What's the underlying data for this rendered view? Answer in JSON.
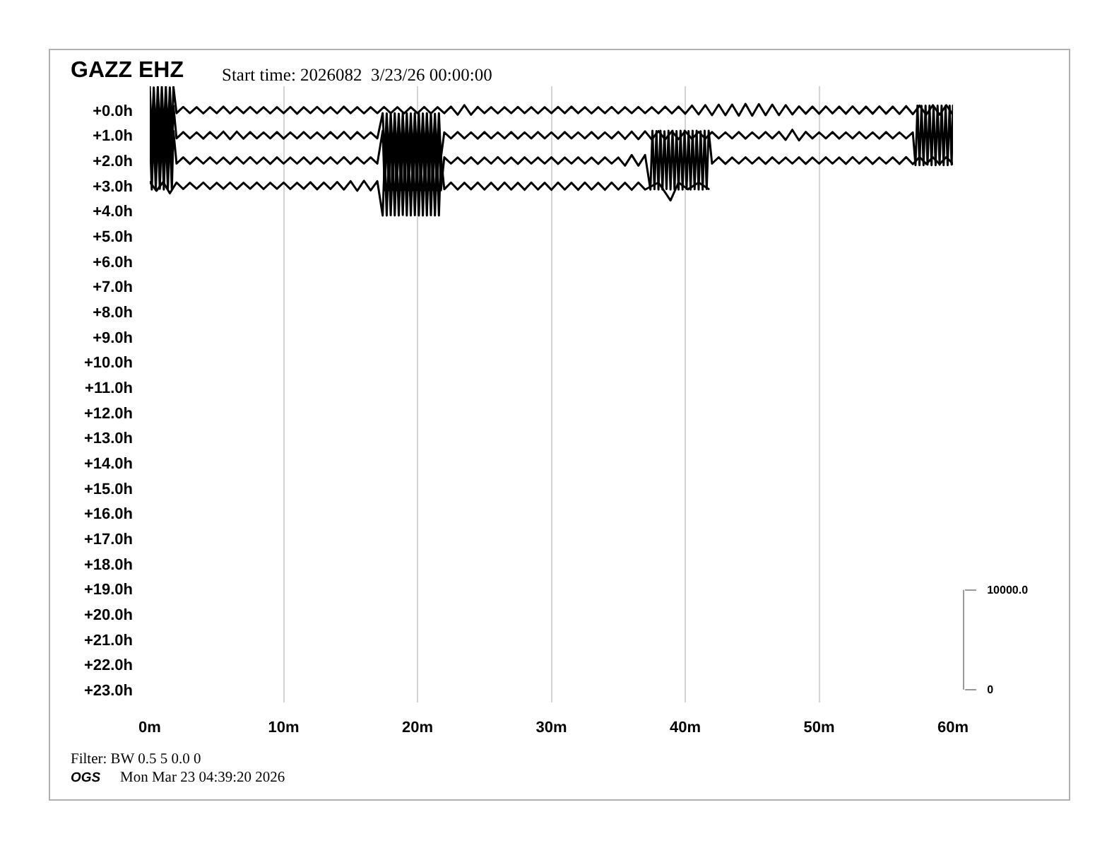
{
  "chart_data": {
    "type": "line",
    "title": "GAZZ EHZ",
    "subtitle": "Start time: 2026082  3/23/26 00:00:00",
    "annotations": [
      "Filter: BW 0.5 5 0.0 0",
      "OGS",
      "Mon Mar 23 04:39:20 2026"
    ],
    "xlim": [
      0,
      60
    ],
    "xticks": [
      {
        "value": 0,
        "label": "0m"
      },
      {
        "value": 10,
        "label": "10m"
      },
      {
        "value": 20,
        "label": "20m"
      },
      {
        "value": 30,
        "label": "30m"
      },
      {
        "value": 40,
        "label": "40m"
      },
      {
        "value": 50,
        "label": "50m"
      },
      {
        "value": 60,
        "label": "60m"
      }
    ],
    "ylim": [
      23.5,
      -0.95
    ],
    "yticks": [
      {
        "value": 0,
        "label": "+0.0h"
      },
      {
        "value": 1,
        "label": "+1.0h"
      },
      {
        "value": 2,
        "label": "+2.0h"
      },
      {
        "value": 3,
        "label": "+3.0h"
      },
      {
        "value": 4,
        "label": "+4.0h"
      },
      {
        "value": 5,
        "label": "+5.0h"
      },
      {
        "value": 6,
        "label": "+6.0h"
      },
      {
        "value": 7,
        "label": "+7.0h"
      },
      {
        "value": 8,
        "label": "+8.0h"
      },
      {
        "value": 9,
        "label": "+9.0h"
      },
      {
        "value": 10,
        "label": "+10.0h"
      },
      {
        "value": 11,
        "label": "+11.0h"
      },
      {
        "value": 12,
        "label": "+12.0h"
      },
      {
        "value": 13,
        "label": "+13.0h"
      },
      {
        "value": 14,
        "label": "+14.0h"
      },
      {
        "value": 15,
        "label": "+15.0h"
      },
      {
        "value": 16,
        "label": "+16.0h"
      },
      {
        "value": 17,
        "label": "+17.0h"
      },
      {
        "value": 18,
        "label": "+18.0h"
      },
      {
        "value": 19,
        "label": "+19.0h"
      },
      {
        "value": 20,
        "label": "+20.0h"
      },
      {
        "value": 21,
        "label": "+21.0h"
      },
      {
        "value": 22,
        "label": "+22.0h"
      },
      {
        "value": 23,
        "label": "+23.0h"
      }
    ],
    "y2lim": [
      -1300,
      60600
    ],
    "y2ticks": [
      {
        "value": 10000,
        "label": "10000.0"
      },
      0
    ],
    "grid": "x",
    "series": [
      {
        "color": "#000000",
        "x": [
          0,
          0.15,
          0.3,
          0.45,
          0.6,
          0.75,
          0.9,
          1.05,
          1.2,
          1.35,
          1.5,
          1.65,
          1.77,
          2,
          2.5,
          3,
          3.5,
          4,
          4.5,
          5,
          5.5,
          6,
          6.5,
          7,
          7.5,
          8,
          8.5,
          9,
          9.5,
          10,
          10.5,
          11,
          11.5,
          12,
          12.5,
          13,
          13.5,
          14,
          14.5,
          15,
          15.5,
          16,
          16.5,
          17,
          17.5,
          18,
          18.5,
          19,
          19.5,
          20,
          20.5,
          21,
          21.5,
          22,
          22.5,
          23,
          23.5,
          24,
          24.5,
          25,
          25.5,
          26,
          26.5,
          27,
          27.5,
          28,
          28.5,
          29,
          29.5,
          30,
          30.5,
          31,
          31.5,
          32,
          32.5,
          33,
          33.5,
          34,
          34.5,
          35,
          35.5,
          36,
          36.5,
          37,
          37.5,
          38,
          38.5,
          39,
          39.5,
          40,
          40.5,
          41,
          41.5,
          42,
          42.5,
          43,
          43.5,
          44,
          44.5,
          45,
          45.5,
          46,
          46.5,
          47,
          47.5,
          48,
          48.5,
          49,
          49.5,
          50,
          50.5,
          51,
          51.5,
          52,
          52.5,
          53,
          53.5,
          54,
          54.5,
          55,
          55.5,
          56,
          56.5,
          57,
          57.5,
          58,
          58.5,
          59,
          59.5,
          60
        ],
        "values": [
          -0.93,
          0.93,
          -0.9,
          0.93,
          -0.93,
          0.9,
          -0.92,
          0.93,
          -0.93,
          0.92,
          -0.9,
          0.93,
          -0.92,
          0.12,
          -0.13,
          0.12,
          -0.12,
          0.13,
          -0.12,
          0.12,
          -0.14,
          0.13,
          -0.12,
          0.12,
          -0.13,
          0.12,
          -0.12,
          0.13,
          -0.12,
          0.12,
          -0.13,
          0.14,
          -0.12,
          0.12,
          -0.13,
          0.12,
          -0.12,
          0.13,
          -0.14,
          0.12,
          -0.12,
          0.13,
          -0.12,
          0.12,
          -0.13,
          0.12,
          -0.12,
          0.13,
          -0.12,
          0.12,
          -0.13,
          0.13,
          -0.12,
          0.12,
          -0.14,
          0.18,
          -0.2,
          0.18,
          -0.13,
          0.12,
          -0.12,
          0.13,
          -0.12,
          0.12,
          -0.13,
          0.12,
          -0.12,
          0.13,
          -0.12,
          0.12,
          -0.13,
          0.12,
          -0.14,
          0.12,
          -0.12,
          0.13,
          -0.12,
          0.12,
          -0.13,
          0.13,
          -0.12,
          0.12,
          -0.13,
          0.12,
          -0.12,
          0.13,
          -0.14,
          0.13,
          -0.14,
          0.14,
          -0.18,
          0.17,
          -0.2,
          0.2,
          -0.22,
          0.2,
          -0.22,
          0.22,
          -0.25,
          0.22,
          -0.24,
          0.2,
          -0.22,
          0.2,
          -0.2,
          0.17,
          -0.15,
          0.14,
          -0.14,
          0.14,
          -0.15,
          0.13,
          -0.14,
          0.14,
          -0.15,
          0.14,
          -0.14,
          0.14,
          -0.15,
          0.14,
          -0.14,
          0.15,
          -0.16,
          0.16,
          -0.18,
          0.18,
          -0.2,
          0.18,
          -0.2,
          0.18
        ]
      },
      {
        "color": "#000000",
        "x": [
          0,
          0.15,
          0.3,
          0.45,
          0.6,
          0.75,
          0.9,
          1.05,
          1.2,
          1.35,
          1.5,
          1.65,
          1.77,
          2,
          2.5,
          3,
          3.5,
          4,
          4.5,
          5,
          5.5,
          6,
          6.5,
          7,
          7.5,
          8,
          8.5,
          9,
          9.5,
          10,
          10.5,
          11,
          11.5,
          12,
          12.5,
          13,
          13.5,
          14,
          14.5,
          15,
          15.5,
          16,
          16.5,
          17,
          17.4,
          17.55,
          17.7,
          17.85,
          18,
          18.15,
          18.3,
          18.45,
          18.6,
          18.75,
          18.9,
          19.05,
          19.2,
          19.35,
          19.5,
          19.65,
          19.8,
          19.95,
          20.1,
          20.25,
          20.4,
          20.55,
          20.7,
          20.85,
          21,
          21.15,
          21.3,
          21.45,
          21.6,
          21.75,
          22,
          22.5,
          23,
          23.5,
          24,
          24.5,
          25,
          25.5,
          26,
          26.5,
          27,
          27.5,
          28,
          28.5,
          29,
          29.5,
          30,
          30.5,
          31,
          31.5,
          32,
          32.5,
          33,
          33.5,
          34,
          34.5,
          35,
          35.5,
          36,
          36.5,
          37,
          37.5,
          38,
          38.5,
          39,
          39.5,
          40,
          40.5,
          41,
          41.5,
          42,
          42.5,
          43,
          43.5,
          44,
          44.5,
          45,
          45.5,
          46,
          46.5,
          47,
          47.5,
          48,
          48.5,
          49,
          49.5,
          50,
          50.5,
          51,
          51.5,
          52,
          52.5,
          53,
          53.5,
          54,
          54.5,
          55,
          55.5,
          56,
          56.5,
          57,
          57.2,
          57.35,
          57.5,
          57.65,
          57.8,
          57.95,
          58.1,
          58.25,
          58.4,
          58.55,
          58.7,
          58.85,
          59,
          59.15,
          59.3,
          59.45,
          59.6,
          59.75,
          59.9,
          60
        ],
        "values": [
          -0.18,
          2.18,
          -0.15,
          2.18,
          -0.18,
          2.15,
          -0.17,
          2.18,
          -0.18,
          2.17,
          -0.15,
          2.18,
          -0.17,
          1.12,
          0.87,
          1.12,
          0.88,
          1.13,
          0.87,
          1.12,
          0.85,
          1.15,
          0.85,
          1.13,
          0.87,
          1.12,
          0.88,
          1.12,
          0.87,
          1.13,
          0.88,
          1.12,
          0.87,
          1.12,
          0.88,
          1.13,
          0.87,
          1.12,
          0.86,
          1.14,
          0.87,
          1.12,
          0.88,
          1.12,
          0.12,
          1.88,
          0.13,
          1.88,
          0.12,
          1.87,
          0.12,
          1.88,
          0.14,
          1.88,
          0.12,
          1.86,
          0.12,
          1.88,
          0.13,
          1.88,
          0.12,
          1.87,
          0.12,
          1.88,
          0.13,
          1.88,
          0.12,
          1.88,
          0.12,
          1.87,
          0.14,
          1.88,
          0.12,
          1.88,
          0.88,
          1.12,
          0.87,
          1.12,
          0.88,
          1.13,
          0.87,
          1.12,
          0.88,
          1.12,
          0.87,
          1.13,
          0.88,
          1.12,
          0.87,
          1.12,
          0.88,
          1.13,
          0.87,
          1.12,
          0.88,
          1.12,
          0.87,
          1.13,
          0.88,
          1.12,
          0.86,
          1.14,
          0.85,
          1.15,
          0.84,
          1.16,
          0.83,
          1.16,
          0.84,
          1.15,
          0.84,
          1.14,
          0.86,
          1.13,
          0.87,
          1.12,
          0.88,
          1.12,
          0.87,
          1.13,
          0.88,
          1.12,
          0.87,
          1.12,
          0.86,
          1.18,
          0.78,
          1.2,
          0.86,
          1.12,
          0.88,
          1.12,
          0.87,
          1.13,
          0.88,
          1.12,
          0.87,
          1.12,
          0.88,
          1.13,
          0.87,
          1.12,
          0.88,
          1.12,
          0.88,
          2.18,
          -0.18,
          2.18,
          -0.17,
          2.18,
          -0.18,
          2.16,
          -0.18,
          2.18,
          -0.16,
          2.18,
          -0.18,
          2.17,
          -0.18,
          2.18,
          -0.17,
          2.18,
          -0.18,
          2.16,
          -0.18
        ]
      },
      {
        "color": "#000000",
        "x": [
          0,
          0.15,
          0.3,
          0.45,
          0.6,
          0.75,
          0.9,
          1.05,
          1.2,
          1.35,
          1.5,
          1.65,
          1.77,
          2,
          2.5,
          3,
          3.5,
          4,
          4.5,
          5,
          5.5,
          6,
          6.5,
          7,
          7.5,
          8,
          8.5,
          9,
          9.5,
          10,
          10.5,
          11,
          11.5,
          12,
          12.5,
          13,
          13.5,
          14,
          14.5,
          15,
          15.5,
          16,
          16.5,
          17,
          17.4,
          17.55,
          17.7,
          17.85,
          18,
          18.15,
          18.3,
          18.45,
          18.6,
          18.75,
          18.9,
          19.05,
          19.2,
          19.35,
          19.5,
          19.65,
          19.8,
          19.95,
          20.1,
          20.25,
          20.4,
          20.55,
          20.7,
          20.85,
          21,
          21.15,
          21.3,
          21.45,
          21.6,
          21.75,
          22,
          22.5,
          23,
          23.5,
          24,
          24.5,
          25,
          25.5,
          26,
          26.5,
          27,
          27.5,
          28,
          28.5,
          29,
          29.5,
          30,
          30.5,
          31,
          31.5,
          32,
          32.5,
          33,
          33.5,
          34,
          34.5,
          35,
          35.5,
          36,
          36.5,
          37,
          37.4,
          37.55,
          37.7,
          37.85,
          38,
          38.15,
          38.3,
          38.45,
          38.6,
          38.75,
          38.9,
          39.05,
          39.2,
          39.35,
          39.5,
          39.65,
          39.8,
          39.95,
          40.1,
          40.25,
          40.4,
          40.55,
          40.7,
          40.85,
          41,
          41.15,
          41.3,
          41.45,
          41.6,
          41.75,
          42,
          42.5,
          43,
          43.5,
          44,
          44.5,
          45,
          45.5,
          46,
          46.5,
          47,
          47.5,
          48,
          48.5,
          49,
          49.5,
          50,
          50.5,
          51,
          51.5,
          52,
          52.5,
          53,
          53.5,
          54,
          54.5,
          55,
          55.5,
          56,
          56.5,
          57,
          57.5,
          58,
          58.5,
          59,
          59.5,
          60
        ],
        "values": [
          0.82,
          3.15,
          0.85,
          3.15,
          0.82,
          3.12,
          0.83,
          3.15,
          0.82,
          3.14,
          0.85,
          3.15,
          0.83,
          2.12,
          1.87,
          2.13,
          1.88,
          2.12,
          1.87,
          2.12,
          1.88,
          2.13,
          1.87,
          2.12,
          1.86,
          2.12,
          1.88,
          2.13,
          1.87,
          2.12,
          1.88,
          2.12,
          1.87,
          2.13,
          1.88,
          2.12,
          1.87,
          2.12,
          1.86,
          2.13,
          1.88,
          2.12,
          1.87,
          2.12,
          0.82,
          3.18,
          0.83,
          3.18,
          0.82,
          3.17,
          0.82,
          3.18,
          0.84,
          3.18,
          0.82,
          3.16,
          0.82,
          3.18,
          0.83,
          3.18,
          0.82,
          3.17,
          0.82,
          3.18,
          0.83,
          3.18,
          0.82,
          3.18,
          0.82,
          3.17,
          0.84,
          3.18,
          0.82,
          3.18,
          1.87,
          2.12,
          1.88,
          2.12,
          1.87,
          2.13,
          1.88,
          2.12,
          1.86,
          2.12,
          1.88,
          2.13,
          1.87,
          2.12,
          1.88,
          2.12,
          1.87,
          2.13,
          1.88,
          2.12,
          1.87,
          2.12,
          1.88,
          2.13,
          1.87,
          2.12,
          1.88,
          2.2,
          1.78,
          2.2,
          1.78,
          3.15,
          0.82,
          3.14,
          0.83,
          3.15,
          0.82,
          3.15,
          0.84,
          3.13,
          0.82,
          3.15,
          0.82,
          3.14,
          0.83,
          3.15,
          0.82,
          3.15,
          0.82,
          3.13,
          0.83,
          3.15,
          0.82,
          3.14,
          0.82,
          3.15,
          0.84,
          3.15,
          0.82,
          3.13,
          0.82,
          2.12,
          1.87,
          2.13,
          1.88,
          2.12,
          1.87,
          2.12,
          1.88,
          2.13,
          1.87,
          2.12,
          1.88,
          2.12,
          1.87,
          2.13,
          1.88,
          2.12,
          1.87,
          2.12,
          1.88,
          2.13,
          1.86,
          2.12,
          1.87,
          2.13,
          1.88,
          2.12,
          1.87,
          2.13,
          1.86,
          2.14,
          1.86,
          2.13,
          1.87,
          2.14,
          1.86,
          2.13
        ]
      },
      {
        "color": "#000000",
        "x": [
          0,
          0.5,
          1,
          1.5,
          2,
          2.5,
          3,
          3.5,
          4,
          4.5,
          5,
          5.5,
          6,
          6.5,
          7,
          7.5,
          8,
          8.5,
          9,
          9.5,
          10,
          10.5,
          11,
          11.5,
          12,
          12.5,
          13,
          13.5,
          14,
          14.5,
          15,
          15.5,
          16,
          16.5,
          17,
          17.4,
          17.55,
          17.7,
          17.85,
          18,
          18.15,
          18.3,
          18.45,
          18.6,
          18.75,
          18.9,
          19.05,
          19.2,
          19.35,
          19.5,
          19.65,
          19.8,
          19.95,
          20.1,
          20.25,
          20.4,
          20.55,
          20.7,
          20.85,
          21,
          21.15,
          21.3,
          21.45,
          21.6,
          21.75,
          22,
          22.5,
          23,
          23.5,
          24,
          24.5,
          25,
          25.5,
          26,
          26.5,
          27,
          27.5,
          28,
          28.5,
          29,
          29.5,
          30,
          30.5,
          31,
          31.5,
          32,
          32.5,
          33,
          33.5,
          34,
          34.5,
          35,
          35.5,
          36,
          36.5,
          37,
          38,
          38.9,
          39.5,
          40.2,
          41,
          41.75
        ],
        "values": [
          2.85,
          3.2,
          2.85,
          3.3,
          2.87,
          3.13,
          2.88,
          3.12,
          2.87,
          3.13,
          2.88,
          3.12,
          2.87,
          3.13,
          2.88,
          3.12,
          2.87,
          3.13,
          2.88,
          3.12,
          2.87,
          3.13,
          2.88,
          3.12,
          2.86,
          3.14,
          2.87,
          3.13,
          2.85,
          3.15,
          2.82,
          3.2,
          2.8,
          3.18,
          2.82,
          4.18,
          1.82,
          4.18,
          1.83,
          4.17,
          1.82,
          4.18,
          1.82,
          4.18,
          1.84,
          4.16,
          1.82,
          4.18,
          1.82,
          4.18,
          1.83,
          4.17,
          1.82,
          4.18,
          1.82,
          4.18,
          1.83,
          4.18,
          1.82,
          4.17,
          1.82,
          4.18,
          1.84,
          4.18,
          1.82,
          3.14,
          2.87,
          3.15,
          2.88,
          3.14,
          2.87,
          3.15,
          2.88,
          3.16,
          2.87,
          3.15,
          2.88,
          3.16,
          2.87,
          3.15,
          2.88,
          3.16,
          2.87,
          3.15,
          2.88,
          3.16,
          2.87,
          3.15,
          2.88,
          3.16,
          2.87,
          3.15,
          2.88,
          3.16,
          2.87,
          3.15,
          2.87,
          3.58,
          2.87,
          3.14,
          2.87,
          3.13
        ]
      }
    ]
  }
}
